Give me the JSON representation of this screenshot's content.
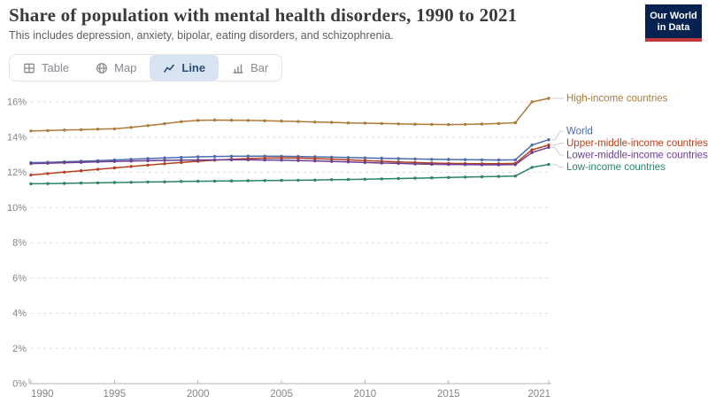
{
  "header": {
    "logo": {
      "line1": "Our World",
      "line2": "in Data"
    }
  },
  "tabs": [
    {
      "label": "Table",
      "icon": "table-icon",
      "active": false
    },
    {
      "label": "Map",
      "icon": "map-icon",
      "active": false
    },
    {
      "label": "Line",
      "icon": "line-chart-icon",
      "active": true
    },
    {
      "label": "Bar",
      "icon": "bar-chart-icon",
      "active": false
    }
  ],
  "colors": {
    "active_tab_bg": "#d9e4f2",
    "active_tab_text": "#2d4e75",
    "inactive_tab_text": "#858a8f",
    "axis_text": "#858585",
    "gridline": "#dcdcdc",
    "axis_line": "#b4b4b4",
    "connector": "#cfcfcf",
    "logo_bg": "#06224e",
    "logo_accent": "#c0373c"
  },
  "chart_data": {
    "type": "line",
    "title": "Share of population with mental health disorders, 1990 to 2021",
    "subtitle": "This includes depression, anxiety, bipolar, eating disorders, and schizophrenia.",
    "x": [
      1990,
      1991,
      1992,
      1993,
      1994,
      1995,
      1996,
      1997,
      1998,
      1999,
      2000,
      2001,
      2002,
      2003,
      2004,
      2005,
      2006,
      2007,
      2008,
      2009,
      2010,
      2011,
      2012,
      2013,
      2014,
      2015,
      2016,
      2017,
      2018,
      2019,
      2020,
      2021
    ],
    "x_ticks": [
      1990,
      1995,
      2000,
      2005,
      2010,
      2015,
      2021
    ],
    "y_ticks": [
      0,
      2,
      4,
      6,
      8,
      10,
      12,
      14,
      16
    ],
    "y_unit": "%",
    "ylim": [
      0,
      16.6
    ],
    "grid": "horizontal-dashed",
    "legend_position": "right-line-labels",
    "series": [
      {
        "name": "High-income countries",
        "color": "#ae7a38",
        "values": [
          14.35,
          14.37,
          14.4,
          14.42,
          14.45,
          14.47,
          14.55,
          14.65,
          14.76,
          14.88,
          14.95,
          14.97,
          14.96,
          14.95,
          14.93,
          14.91,
          14.89,
          14.86,
          14.84,
          14.81,
          14.79,
          14.77,
          14.75,
          14.73,
          14.72,
          14.71,
          14.72,
          14.74,
          14.77,
          14.82,
          16.0,
          16.2
        ]
      },
      {
        "name": "World",
        "color": "#4c6bac",
        "values": [
          12.55,
          12.57,
          12.6,
          12.63,
          12.66,
          12.7,
          12.74,
          12.78,
          12.82,
          12.85,
          12.88,
          12.9,
          12.91,
          12.92,
          12.92,
          12.91,
          12.9,
          12.88,
          12.86,
          12.84,
          12.82,
          12.8,
          12.78,
          12.76,
          12.74,
          12.73,
          12.72,
          12.71,
          12.7,
          12.71,
          13.55,
          13.85
        ]
      },
      {
        "name": "Upper-middle-income countries",
        "color": "#b5401f",
        "values": [
          11.85,
          11.93,
          12.01,
          12.09,
          12.17,
          12.25,
          12.33,
          12.41,
          12.49,
          12.56,
          12.63,
          12.69,
          12.74,
          12.78,
          12.81,
          12.82,
          12.81,
          12.78,
          12.75,
          12.71,
          12.67,
          12.63,
          12.59,
          12.56,
          12.53,
          12.51,
          12.5,
          12.49,
          12.49,
          12.51,
          13.28,
          13.55
        ]
      },
      {
        "name": "Lower-middle-income countries",
        "color": "#6d3e91",
        "values": [
          12.5,
          12.52,
          12.55,
          12.57,
          12.6,
          12.62,
          12.64,
          12.66,
          12.68,
          12.69,
          12.7,
          12.71,
          12.71,
          12.71,
          12.7,
          12.69,
          12.67,
          12.65,
          12.62,
          12.59,
          12.56,
          12.53,
          12.51,
          12.48,
          12.46,
          12.45,
          12.44,
          12.43,
          12.43,
          12.44,
          13.12,
          13.42
        ]
      },
      {
        "name": "Low-income countries",
        "color": "#2c8465",
        "values": [
          11.35,
          11.36,
          11.37,
          11.39,
          11.4,
          11.42,
          11.43,
          11.45,
          11.46,
          11.48,
          11.49,
          11.5,
          11.51,
          11.52,
          11.53,
          11.54,
          11.55,
          11.56,
          11.58,
          11.59,
          11.61,
          11.63,
          11.65,
          11.67,
          11.69,
          11.71,
          11.73,
          11.75,
          11.77,
          11.79,
          12.28,
          12.45
        ]
      }
    ]
  }
}
